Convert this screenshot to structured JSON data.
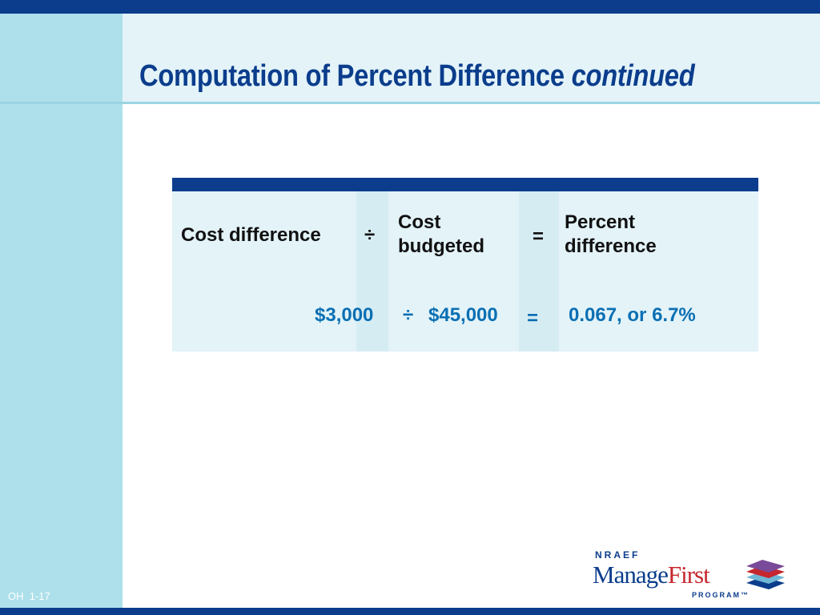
{
  "slide": {
    "title": "Computation of Percent Difference",
    "title_suffix": "continued",
    "footer_code": "OH  1-17"
  },
  "table": {
    "header": {
      "cost_difference": "Cost difference",
      "divide": "÷",
      "cost_budgeted_line1": "Cost",
      "cost_budgeted_line2": "budgeted",
      "equals": "=",
      "percent_difference_line1": "Percent",
      "percent_difference_line2": "difference"
    },
    "row": {
      "cost_difference": "$3,000",
      "divide": "÷",
      "cost_budgeted": "$45,000",
      "equals": "=",
      "percent_difference": "0.067, or 6.7%"
    }
  },
  "logo": {
    "top": "NRAEF",
    "manage": "Manage",
    "first": "First",
    "bottom": "PROGRAM™"
  },
  "colors": {
    "brand_navy": "#0b3d8c",
    "accent_light_blue": "#ade0ea",
    "value_blue": "#0a6fb3",
    "logo_red": "#c6262e"
  }
}
